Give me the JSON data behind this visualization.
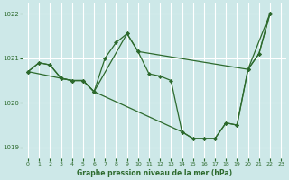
{
  "background_color": "#cde8e8",
  "grid_color": "#ffffff",
  "line_color": "#2d6a2d",
  "ylim": [
    1018.75,
    1022.25
  ],
  "xlim": [
    -0.5,
    23.5
  ],
  "yticks": [
    1019,
    1020,
    1021,
    1022
  ],
  "xticks": [
    0,
    1,
    2,
    3,
    4,
    5,
    6,
    7,
    8,
    9,
    10,
    11,
    12,
    13,
    14,
    15,
    16,
    17,
    18,
    19,
    20,
    21,
    22,
    23
  ],
  "xlabel": "Graphe pression niveau de la mer (hPa)",
  "series": [
    {
      "x": [
        0,
        1,
        2,
        3,
        4,
        5,
        6,
        7,
        8,
        9,
        10,
        11,
        12,
        13,
        14,
        15,
        16,
        17,
        18,
        19,
        20,
        21,
        22
      ],
      "y": [
        1020.7,
        1020.9,
        1020.85,
        1020.55,
        1020.5,
        1020.5,
        1020.25,
        1021.0,
        1021.35,
        1021.55,
        1021.15,
        1020.65,
        1020.6,
        1020.5,
        1019.35,
        1019.2,
        1019.2,
        1019.2,
        1019.55,
        1019.5,
        1020.75,
        1021.1,
        1022.0
      ]
    },
    {
      "x": [
        0,
        3,
        4,
        5,
        6,
        9,
        10,
        20,
        22
      ],
      "y": [
        1020.7,
        1020.55,
        1020.5,
        1020.5,
        1020.25,
        1021.55,
        1021.15,
        1020.75,
        1022.0
      ]
    },
    {
      "x": [
        0,
        1,
        2,
        3,
        4,
        5,
        6,
        14,
        15,
        16,
        17,
        18,
        19,
        20,
        21,
        22
      ],
      "y": [
        1020.7,
        1020.9,
        1020.85,
        1020.55,
        1020.5,
        1020.5,
        1020.25,
        1019.35,
        1019.2,
        1019.2,
        1019.2,
        1019.55,
        1019.5,
        1020.75,
        1021.1,
        1022.0
      ]
    }
  ]
}
